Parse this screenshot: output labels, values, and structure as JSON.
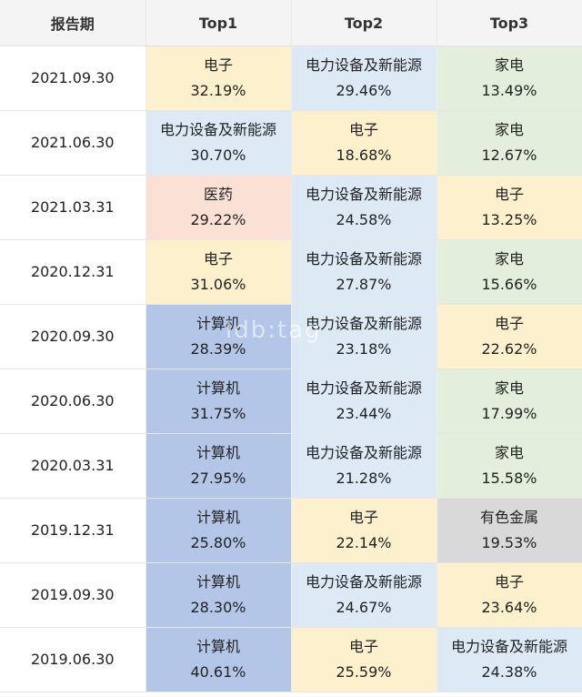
{
  "header": {
    "col0": "报告期",
    "col1": "Top1",
    "col2": "Top2",
    "col3": "Top3"
  },
  "colors": {
    "电子": "#fdf0cc",
    "电力设备及新能源": "#ddeaf6",
    "家电": "#e3efdc",
    "医药": "#fbe0d6",
    "计算机": "#b4c6e7",
    "有色金属": "#d9d9d9"
  },
  "rows": [
    {
      "date": "2021.09.30",
      "cells": [
        {
          "ind": "电子",
          "pct": "32.19%"
        },
        {
          "ind": "电力设备及新能源",
          "pct": "29.46%"
        },
        {
          "ind": "家电",
          "pct": "13.49%"
        }
      ]
    },
    {
      "date": "2021.06.30",
      "cells": [
        {
          "ind": "电力设备及新能源",
          "pct": "30.70%"
        },
        {
          "ind": "电子",
          "pct": "18.68%"
        },
        {
          "ind": "家电",
          "pct": "12.67%"
        }
      ]
    },
    {
      "date": "2021.03.31",
      "cells": [
        {
          "ind": "医药",
          "pct": "29.22%"
        },
        {
          "ind": "电力设备及新能源",
          "pct": "24.58%"
        },
        {
          "ind": "电子",
          "pct": "13.25%"
        }
      ]
    },
    {
      "date": "2020.12.31",
      "cells": [
        {
          "ind": "电子",
          "pct": "31.06%"
        },
        {
          "ind": "电力设备及新能源",
          "pct": "27.87%"
        },
        {
          "ind": "家电",
          "pct": "15.66%"
        }
      ]
    },
    {
      "date": "2020.09.30",
      "cells": [
        {
          "ind": "计算机",
          "pct": "28.39%"
        },
        {
          "ind": "电力设备及新能源",
          "pct": "23.18%"
        },
        {
          "ind": "电子",
          "pct": "22.62%"
        }
      ]
    },
    {
      "date": "2020.06.30",
      "cells": [
        {
          "ind": "计算机",
          "pct": "31.75%"
        },
        {
          "ind": "电力设备及新能源",
          "pct": "23.44%"
        },
        {
          "ind": "家电",
          "pct": "17.99%"
        }
      ]
    },
    {
      "date": "2020.03.31",
      "cells": [
        {
          "ind": "计算机",
          "pct": "27.95%"
        },
        {
          "ind": "电力设备及新能源",
          "pct": "21.28%"
        },
        {
          "ind": "家电",
          "pct": "15.58%"
        }
      ]
    },
    {
      "date": "2019.12.31",
      "cells": [
        {
          "ind": "计算机",
          "pct": "25.80%"
        },
        {
          "ind": "电子",
          "pct": "22.14%"
        },
        {
          "ind": "有色金属",
          "pct": "19.53%"
        }
      ]
    },
    {
      "date": "2019.09.30",
      "cells": [
        {
          "ind": "计算机",
          "pct": "28.30%"
        },
        {
          "ind": "电力设备及新能源",
          "pct": "24.67%"
        },
        {
          "ind": "电子",
          "pct": "23.64%"
        }
      ]
    },
    {
      "date": "2019.06.30",
      "cells": [
        {
          "ind": "计算机",
          "pct": "40.61%"
        },
        {
          "ind": "电子",
          "pct": "25.59%"
        },
        {
          "ind": "电力设备及新能源",
          "pct": "24.38%"
        }
      ]
    }
  ],
  "watermark": "ldb:tag"
}
